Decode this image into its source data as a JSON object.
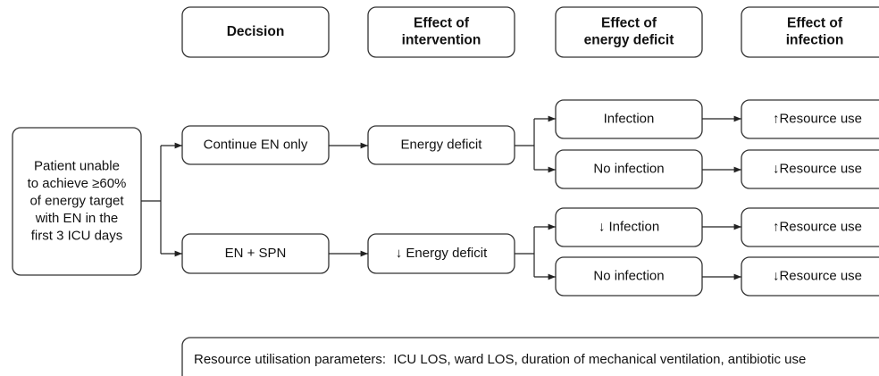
{
  "header": {
    "columns": [
      {
        "lines": [
          "Decision"
        ]
      },
      {
        "lines": [
          "Effect of",
          "intervention"
        ]
      },
      {
        "lines": [
          "Effect of",
          "energy deficit"
        ]
      },
      {
        "lines": [
          "Effect of",
          "infection"
        ]
      }
    ]
  },
  "nodes": [
    {
      "lines": [
        "Patient unable",
        "to achieve ≥60%",
        "of energy target",
        "with EN in the",
        "first 3 ICU days"
      ]
    },
    {
      "lines": [
        "Continue EN only"
      ]
    },
    {
      "lines": [
        "EN + SPN"
      ]
    },
    {
      "lines": [
        "Energy deficit"
      ]
    },
    {
      "lines": [
        "↓ Energy deficit"
      ]
    },
    {
      "lines": [
        "Infection"
      ]
    },
    {
      "lines": [
        "No infection"
      ]
    },
    {
      "lines": [
        "↓ Infection"
      ]
    },
    {
      "lines": [
        "No infection"
      ]
    },
    {
      "lines": [
        "↑Resource use"
      ]
    },
    {
      "lines": [
        "↓Resource use"
      ]
    },
    {
      "lines": [
        "↑Resource use"
      ]
    },
    {
      "lines": [
        "↓Resource use"
      ]
    }
  ],
  "footer": {
    "text": "Resource utilisation parameters:  ICU LOS, ward LOS, duration of mechanical ventilation, antibiotic use"
  }
}
